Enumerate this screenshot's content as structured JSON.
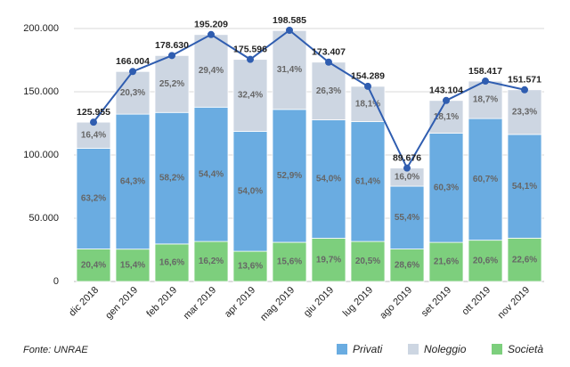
{
  "chart_data": {
    "type": "combo",
    "categories": [
      "dic 2018",
      "gen 2019",
      "feb 2019",
      "mar 2019",
      "apr 2019",
      "mag 2019",
      "giu 2019",
      "lug 2019",
      "ago 2019",
      "set 2019",
      "ott 2019",
      "nov 2019"
    ],
    "series": [
      {
        "name": "Società",
        "color": "#7dcf7d",
        "values": [
          20.4,
          15.4,
          16.6,
          16.2,
          13.6,
          15.6,
          19.7,
          20.5,
          28.6,
          21.6,
          20.6,
          22.6
        ],
        "value_labels": [
          "20,4%",
          "15,4%",
          "16,6%",
          "16,2%",
          "13,6%",
          "15,6%",
          "19,7%",
          "20,5%",
          "28,6%",
          "21,6%",
          "20,6%",
          "22,6%"
        ]
      },
      {
        "name": "Privati",
        "color": "#6aace1",
        "values": [
          63.2,
          64.3,
          58.2,
          54.4,
          54.0,
          52.9,
          54.0,
          61.4,
          55.4,
          60.3,
          60.7,
          54.1
        ],
        "value_labels": [
          "63,2%",
          "64,3%",
          "58,2%",
          "54,4%",
          "54,0%",
          "52,9%",
          "54,0%",
          "61,4%",
          "55,4%",
          "60,3%",
          "60,7%",
          "54,1%"
        ]
      },
      {
        "name": "Noleggio",
        "color": "#cdd6e2",
        "values": [
          16.4,
          20.3,
          25.2,
          29.4,
          32.4,
          31.4,
          26.3,
          18.1,
          16.0,
          18.1,
          18.7,
          23.3
        ],
        "value_labels": [
          "16,4%",
          "20,3%",
          "25,2%",
          "29,4%",
          "32,4%",
          "31,4%",
          "26,3%",
          "18,1%",
          "16,0%",
          "18,1%",
          "18,7%",
          "23,3%"
        ]
      }
    ],
    "line": {
      "color": "#2f5db0",
      "values": [
        125955,
        166004,
        178630,
        195209,
        175596,
        198585,
        173407,
        154289,
        89676,
        143104,
        158417,
        151571
      ],
      "value_labels": [
        "125.955",
        "166.004",
        "178.630",
        "195.209",
        "175.596",
        "198.585",
        "173.407",
        "154.289",
        "89.676",
        "143.104",
        "158.417",
        "151.571"
      ]
    },
    "ylim": [
      0,
      200000
    ],
    "yticks": [
      0,
      {
        "value": 50000,
        "label": "50.000"
      },
      {
        "value": 100000,
        "label": "100.000"
      },
      {
        "value": 150000,
        "label": "150.000"
      },
      {
        "value": 200000,
        "label": "200.000"
      }
    ],
    "grid": true,
    "legend": "bottom-right",
    "source": "Fonte: UNRAE"
  }
}
